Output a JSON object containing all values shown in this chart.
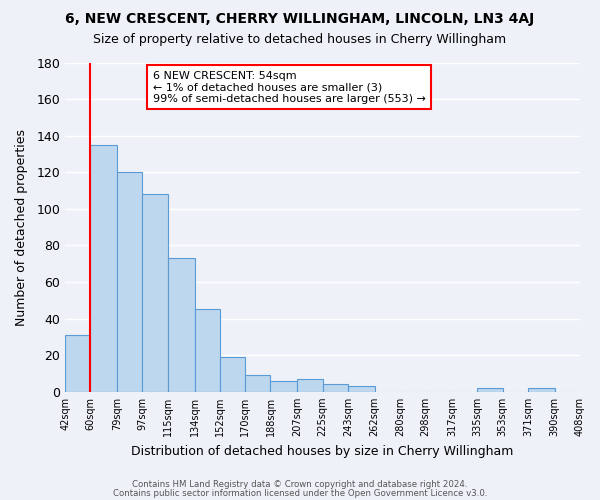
{
  "title": "6, NEW CRESCENT, CHERRY WILLINGHAM, LINCOLN, LN3 4AJ",
  "subtitle": "Size of property relative to detached houses in Cherry Willingham",
  "xlabel": "Distribution of detached houses by size in Cherry Willingham",
  "ylabel": "Number of detached properties",
  "bar_edges": [
    42,
    60,
    79,
    97,
    115,
    134,
    152,
    170,
    188,
    207,
    225,
    243,
    262,
    280,
    298,
    317,
    335,
    353,
    371,
    390,
    408
  ],
  "bar_heights": [
    31,
    135,
    120,
    108,
    73,
    45,
    19,
    9,
    6,
    7,
    4,
    3,
    0,
    0,
    0,
    0,
    2,
    0,
    2,
    0
  ],
  "bar_color": "#bdd7ee",
  "bar_edge_color": "#5b9bd5",
  "highlight_color": "#ff0000",
  "highlight_x": 60,
  "ylim": [
    0,
    180
  ],
  "yticks": [
    0,
    20,
    40,
    60,
    80,
    100,
    120,
    140,
    160,
    180
  ],
  "annotation_title": "6 NEW CRESCENT: 54sqm",
  "annotation_line1": "← 1% of detached houses are smaller (3)",
  "annotation_line2": "99% of semi-detached houses are larger (553) →",
  "annotation_box_color": "#ffffff",
  "annotation_box_edge": "#ff0000",
  "footer1": "Contains HM Land Registry data © Crown copyright and database right 2024.",
  "footer2": "Contains public sector information licensed under the Open Government Licence v3.0.",
  "xlim": [
    42,
    408
  ],
  "background_color": "#eef2f8",
  "grid_color": "#ffffff"
}
